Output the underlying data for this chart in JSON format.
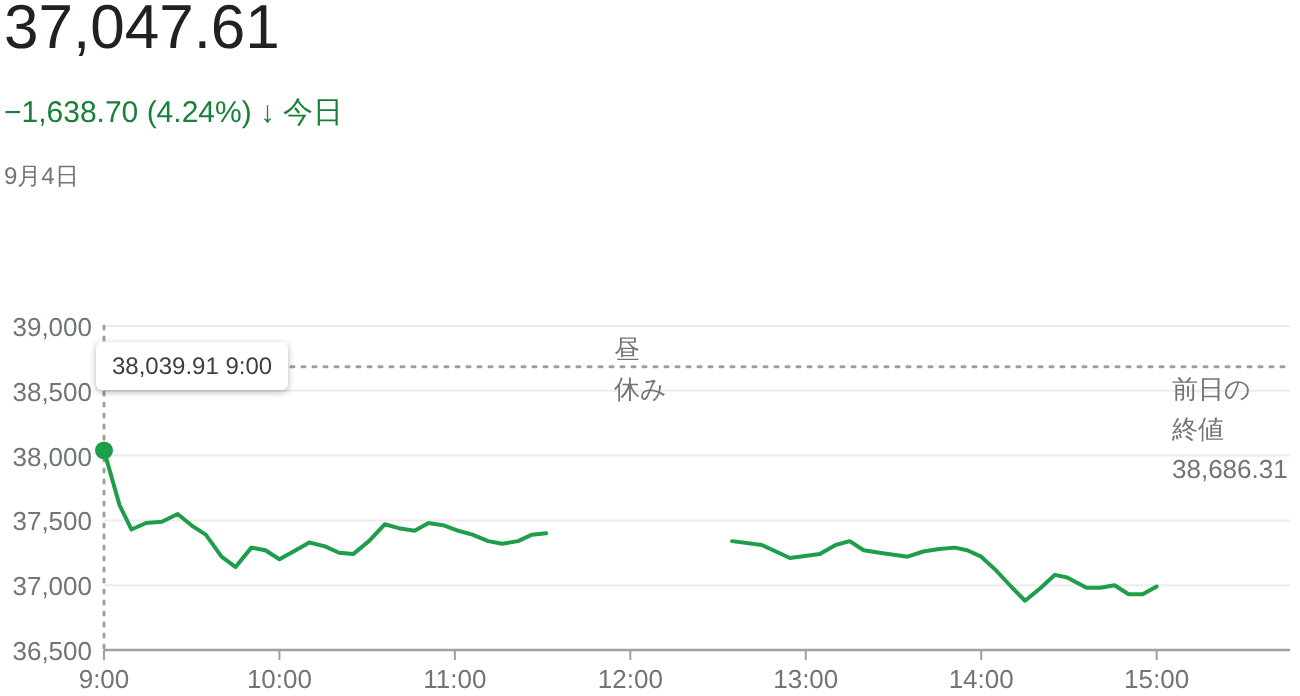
{
  "chart_data": {
    "type": "line",
    "title": "37,047.61",
    "subtitle": "−1,638.70 (4.24%) ↓ 今日",
    "annotations": [
      "9月4日",
      "昼休み",
      "38,686.31",
      {
        "text": "38,039.91 9:00",
        "x": 9,
        "y": 38039.91
      }
    ],
    "series": [
      {
        "color": "#1e9e48",
        "x": [
          9,
          9.088,
          9.156,
          9.24,
          9.33,
          9.42,
          9.5,
          9.58,
          9.67,
          9.75,
          9.84,
          9.92,
          10,
          10.08,
          10.17,
          10.26,
          10.34,
          10.42,
          10.51,
          10.6,
          10.68,
          10.77,
          10.85,
          10.94,
          11.02,
          11.1,
          11.19,
          11.27,
          11.36,
          11.44,
          11.52
        ],
        "values": [
          38039.91,
          37620,
          37430,
          37480,
          37490,
          37550,
          37460,
          37390,
          37220,
          37140,
          37290,
          37270,
          37200,
          37260,
          37330,
          37300,
          37250,
          37240,
          37340,
          37470,
          37440,
          37420,
          37480,
          37460,
          37420,
          37390,
          37340,
          37320,
          37340,
          37390,
          37400
        ]
      },
      {
        "color": "#1e9e48",
        "x": [
          12.58,
          12.75,
          12.91,
          13.08,
          13.17,
          13.25,
          13.33,
          13.42,
          13.58,
          13.67,
          13.76,
          13.85,
          13.92,
          14,
          14.08,
          14.17,
          14.25,
          14.34,
          14.42,
          14.49,
          14.6,
          14.68,
          14.76,
          14.84,
          14.92,
          15
        ],
        "values": [
          37340,
          37310,
          37210,
          37240,
          37310,
          37340,
          37270,
          37250,
          37220,
          37260,
          37280,
          37290,
          37270,
          37220,
          37120,
          36990,
          36880,
          36980,
          37080,
          37060,
          36980,
          36980,
          37000,
          36930,
          36930,
          36990
        ]
      }
    ],
    "xlim": [
      9,
      15.76
    ],
    "ylim": [
      36500,
      39000
    ],
    "xticks": [
      {
        "value": 9,
        "label": "9:00"
      },
      {
        "value": 10,
        "label": "10:00"
      },
      {
        "value": 11,
        "label": "11:00"
      },
      {
        "value": 12,
        "label": "12:00"
      },
      {
        "value": 13,
        "label": "13:00"
      },
      {
        "value": 14,
        "label": "14:00"
      },
      {
        "value": 15,
        "label": "15:00"
      }
    ],
    "yticks": [
      {
        "value": 36500,
        "label": "36,500"
      },
      {
        "value": 37000,
        "label": "37,000"
      },
      {
        "value": 37500,
        "label": "37,500"
      },
      {
        "value": 38000,
        "label": "38,000"
      },
      {
        "value": 38500,
        "label": "38,500"
      },
      {
        "value": 39000,
        "label": "39,000"
      }
    ],
    "ref_lines": [
      {
        "axis": "y",
        "value": 38686.31,
        "label": "前日の終値",
        "line_style": "dotted",
        "color": "#9e9e9e"
      },
      {
        "axis": "x",
        "value": 9,
        "line_style": "dotted",
        "color": "#9e9e9e"
      }
    ],
    "grid": "y",
    "marker": "none",
    "line_style": "solid"
  }
}
